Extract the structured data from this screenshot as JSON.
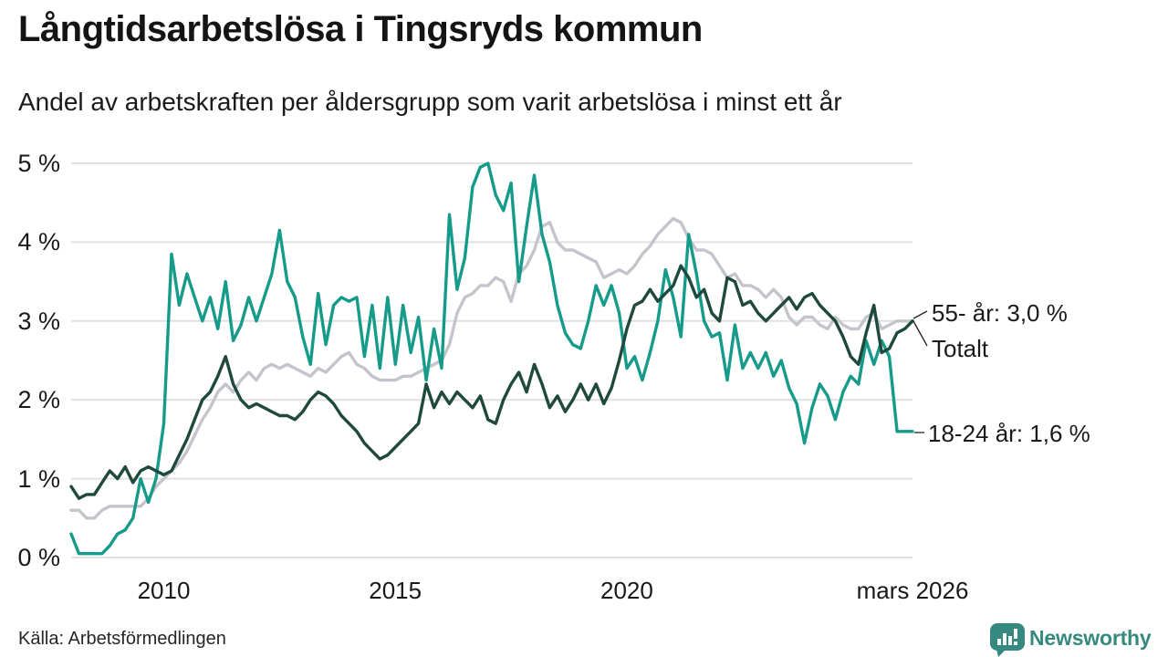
{
  "header": {
    "title": "Långtidsarbetslösa i Tingsryds kommun",
    "subtitle": "Andel av arbetskraften per åldersgrupp som varit arbetslösa i minst ett år"
  },
  "footer": {
    "source": "Källa: Arbetsförmedlingen",
    "brand": "Newsworthy"
  },
  "colors": {
    "teal_18_24": "#169b8a",
    "dark_green_55": "#1e493c",
    "gray_total": "#c5c4cd",
    "grid": "#e1e1e4",
    "text": "#1a1a1a",
    "connector": "#222222",
    "brand_teal": "#36897e"
  },
  "chart_data": {
    "type": "line",
    "title": "Långtidsarbetslösa i Tingsryds kommun",
    "subtitle": "Andel av arbetskraften per åldersgrupp som varit arbetslösa i minst ett år",
    "x_unit": "år (månadsdata)",
    "x_range_years": [
      2008.0,
      2026.17
    ],
    "ylim": [
      0,
      5
    ],
    "grid": "horizontal",
    "legend_position": "right-end-labels",
    "x_ticks": [
      {
        "value": 2010,
        "label": "2010"
      },
      {
        "value": 2015,
        "label": "2015"
      },
      {
        "value": 2020,
        "label": "2020"
      },
      {
        "value": 2026.17,
        "label": "mars 2026"
      }
    ],
    "y_ticks": [
      {
        "value": 0,
        "label": "0 %"
      },
      {
        "value": 1,
        "label": "1 %"
      },
      {
        "value": 2,
        "label": "2 %"
      },
      {
        "value": 3,
        "label": "3 %"
      },
      {
        "value": 4,
        "label": "4 %"
      },
      {
        "value": 5,
        "label": "5 %"
      }
    ],
    "series": [
      {
        "name": "Totalt",
        "end_label": "Totalt",
        "last_value": 3.0,
        "color": "#c5c4cd",
        "values": [
          0.6,
          0.6,
          0.5,
          0.5,
          0.6,
          0.65,
          0.65,
          0.65,
          0.65,
          0.65,
          0.75,
          0.9,
          1.0,
          1.1,
          1.2,
          1.35,
          1.55,
          1.75,
          1.9,
          2.1,
          2.2,
          2.1,
          2.25,
          2.35,
          2.25,
          2.4,
          2.45,
          2.4,
          2.45,
          2.4,
          2.35,
          2.3,
          2.4,
          2.35,
          2.45,
          2.55,
          2.6,
          2.45,
          2.4,
          2.3,
          2.25,
          2.25,
          2.25,
          2.3,
          2.3,
          2.35,
          2.4,
          2.45,
          2.5,
          2.7,
          3.1,
          3.3,
          3.35,
          3.45,
          3.45,
          3.55,
          3.5,
          3.25,
          3.6,
          3.7,
          3.9,
          4.2,
          4.25,
          4.0,
          3.9,
          3.9,
          3.85,
          3.8,
          3.75,
          3.55,
          3.6,
          3.65,
          3.6,
          3.7,
          3.85,
          3.95,
          4.1,
          4.2,
          4.3,
          4.25,
          4.05,
          3.9,
          3.9,
          3.85,
          3.7,
          3.55,
          3.6,
          3.45,
          3.45,
          3.4,
          3.3,
          3.4,
          3.3,
          3.05,
          2.95,
          3.05,
          3.05,
          2.95,
          2.9,
          3.05,
          2.95,
          2.9,
          2.9,
          3.05,
          3.1,
          2.9,
          2.95,
          3.0,
          3.0,
          3.0
        ]
      },
      {
        "name": "18-24 år",
        "end_label": "18-24 år: 1,6 %",
        "last_value": 1.6,
        "color": "#169b8a",
        "values": [
          0.3,
          0.05,
          0.05,
          0.05,
          0.05,
          0.15,
          0.3,
          0.35,
          0.5,
          1.0,
          0.7,
          1.0,
          1.7,
          3.85,
          3.2,
          3.6,
          3.3,
          3.0,
          3.3,
          2.9,
          3.5,
          2.75,
          2.95,
          3.3,
          3.0,
          3.3,
          3.6,
          4.15,
          3.5,
          3.3,
          2.8,
          2.45,
          3.35,
          2.7,
          3.2,
          3.3,
          3.25,
          3.3,
          2.55,
          3.2,
          2.4,
          3.3,
          2.45,
          3.2,
          2.6,
          3.05,
          2.25,
          2.9,
          2.4,
          4.35,
          3.4,
          3.8,
          4.7,
          4.95,
          5.0,
          4.6,
          4.4,
          4.75,
          3.5,
          4.2,
          4.85,
          4.1,
          3.75,
          3.2,
          2.85,
          2.7,
          2.65,
          3.0,
          3.45,
          3.2,
          3.45,
          3.1,
          2.4,
          2.55,
          2.25,
          2.6,
          3.0,
          3.65,
          3.3,
          2.8,
          4.1,
          3.6,
          3.0,
          2.8,
          2.85,
          2.25,
          2.95,
          2.4,
          2.6,
          2.4,
          2.6,
          2.3,
          2.5,
          2.15,
          1.95,
          1.45,
          1.9,
          2.2,
          2.05,
          1.75,
          2.1,
          2.3,
          2.2,
          2.75,
          2.45,
          2.75,
          2.55,
          1.6,
          1.6,
          1.6
        ]
      },
      {
        "name": "55- år",
        "end_label": "55- år: 3,0 %",
        "last_value": 3.0,
        "color": "#1e493c",
        "values": [
          0.9,
          0.75,
          0.8,
          0.8,
          0.95,
          1.1,
          1.0,
          1.15,
          0.95,
          1.1,
          1.15,
          1.1,
          1.05,
          1.1,
          1.3,
          1.5,
          1.75,
          2.0,
          2.1,
          2.3,
          2.55,
          2.2,
          2.0,
          1.9,
          1.95,
          1.9,
          1.85,
          1.8,
          1.8,
          1.75,
          1.85,
          2.0,
          2.1,
          2.05,
          1.95,
          1.8,
          1.7,
          1.6,
          1.45,
          1.35,
          1.25,
          1.3,
          1.4,
          1.5,
          1.6,
          1.7,
          2.2,
          1.9,
          2.1,
          1.95,
          2.1,
          2.0,
          1.9,
          2.05,
          1.75,
          1.7,
          2.0,
          2.2,
          2.35,
          2.1,
          2.45,
          2.2,
          1.9,
          2.05,
          1.85,
          2.0,
          2.2,
          2.0,
          2.2,
          1.95,
          2.15,
          2.5,
          2.9,
          3.2,
          3.25,
          3.4,
          3.25,
          3.35,
          3.45,
          3.7,
          3.55,
          3.3,
          3.4,
          3.1,
          3.0,
          3.55,
          3.5,
          3.2,
          3.25,
          3.1,
          3.0,
          3.1,
          3.2,
          3.3,
          3.15,
          3.3,
          3.35,
          3.2,
          3.1,
          3.0,
          2.8,
          2.55,
          2.45,
          2.85,
          3.2,
          2.6,
          2.65,
          2.85,
          2.9,
          3.0
        ]
      }
    ]
  }
}
